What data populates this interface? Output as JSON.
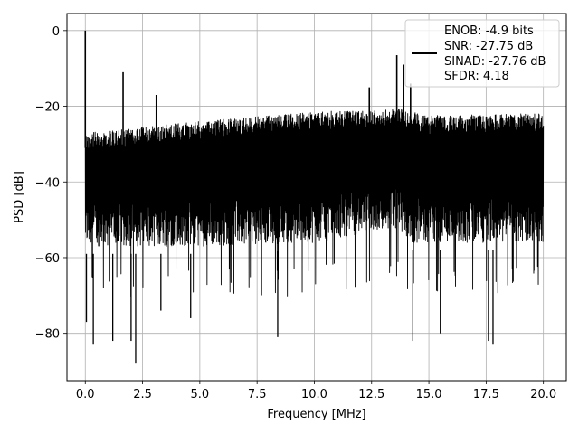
{
  "colors": {
    "background": "#ffffff",
    "trace": "#000000",
    "grid": "#b0b0b0",
    "axes": "#000000",
    "legend_border": "#cccccc"
  },
  "chart_data": {
    "type": "line",
    "title": "",
    "xlabel": "Frequency [MHz]",
    "ylabel": "PSD [dB]",
    "xlim": [
      -0.8,
      21.0
    ],
    "ylim": [
      -92.5,
      4.5
    ],
    "xticks": [
      0.0,
      2.5,
      5.0,
      7.5,
      10.0,
      12.5,
      15.0,
      17.5,
      20.0
    ],
    "xtick_labels": [
      "0.0",
      "2.5",
      "5.0",
      "7.5",
      "10.0",
      "12.5",
      "15.0",
      "17.5",
      "20.0"
    ],
    "yticks": [
      0,
      -20,
      -40,
      -60,
      -80
    ],
    "ytick_labels": [
      "0",
      "−20",
      "−40",
      "−60",
      "−80"
    ],
    "grid": true,
    "legend_position": "top-right",
    "legend_lines": [
      "ENOB: -4.9 bits",
      "SNR: -27.75 dB",
      "SINAD: -27.76 dB",
      "SFDR: 4.18"
    ],
    "series": [
      {
        "color": "#000000",
        "description": "dense noisy PSD trace spanning 0-20 MHz",
        "x_range": [
          0.0,
          20.0
        ],
        "upper_envelope": [
          [
            0.0,
            -27
          ],
          [
            2.0,
            -26
          ],
          [
            4.0,
            -24.5
          ],
          [
            6.0,
            -23.5
          ],
          [
            8.0,
            -22.5
          ],
          [
            10.0,
            -21.5
          ],
          [
            12.0,
            -21
          ],
          [
            13.5,
            -20.5
          ],
          [
            15.0,
            -22.5
          ],
          [
            17.0,
            -22
          ],
          [
            20.0,
            -22
          ]
        ],
        "lower_envelope": [
          [
            0.0,
            -63
          ],
          [
            5.0,
            -63
          ],
          [
            10.0,
            -62
          ],
          [
            13.5,
            -58
          ],
          [
            14.0,
            -62
          ],
          [
            20.0,
            -62
          ]
        ],
        "peaks": [
          {
            "x": 0.0,
            "y": 0
          },
          {
            "x": 1.65,
            "y": -11
          },
          {
            "x": 3.1,
            "y": -17
          },
          {
            "x": 12.4,
            "y": -15
          },
          {
            "x": 13.6,
            "y": -6.5
          },
          {
            "x": 13.9,
            "y": -9
          },
          {
            "x": 14.2,
            "y": -14
          }
        ],
        "dips": [
          {
            "x": 0.05,
            "y": -77
          },
          {
            "x": 0.35,
            "y": -83
          },
          {
            "x": 1.2,
            "y": -82
          },
          {
            "x": 2.0,
            "y": -82
          },
          {
            "x": 2.2,
            "y": -88
          },
          {
            "x": 3.3,
            "y": -74
          },
          {
            "x": 4.6,
            "y": -76
          },
          {
            "x": 8.4,
            "y": -81
          },
          {
            "x": 14.3,
            "y": -82
          },
          {
            "x": 15.5,
            "y": -80
          },
          {
            "x": 17.6,
            "y": -82
          },
          {
            "x": 17.8,
            "y": -83
          }
        ]
      }
    ]
  }
}
